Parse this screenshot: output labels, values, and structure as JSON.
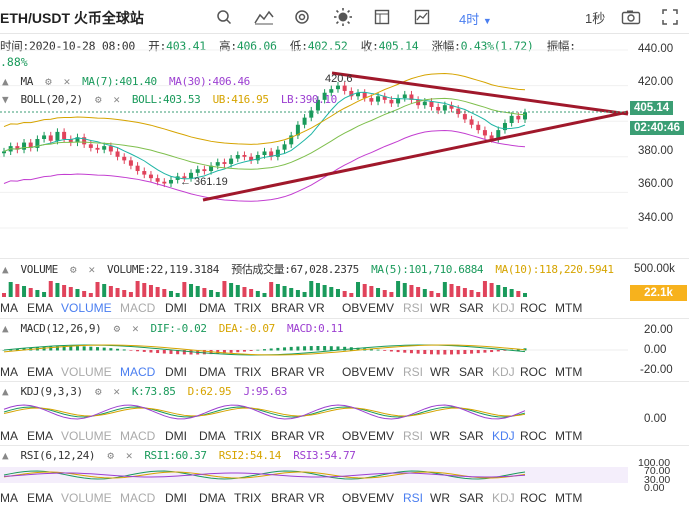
{
  "toolbar": {
    "title": "ETH/USDT 火币全球站",
    "period": "4时",
    "speed": "1秒"
  },
  "info": {
    "time_label": "时间:",
    "time_value": "2020-10-28 08:00",
    "open_label": "开:",
    "open_value": "403.41",
    "high_label": "高:",
    "high_value": "406.06",
    "low_label": "低:",
    "low_value": "402.52",
    "close_label": "收:",
    "close_value": "405.14",
    "change_label": "涨幅:",
    "change_value": "0.43%(1.72)",
    "amp_label": "振幅:",
    "amp_value": ".88%"
  },
  "ma": {
    "name": "MA",
    "ma7": "MA(7):401.40",
    "ma30": "MA(30):406.46"
  },
  "boll": {
    "name": "BOLL(20,2)",
    "boll": "BOLL:403.53",
    "ub": "UB:416.95",
    "lb": "LB:390.10"
  },
  "price_axis": {
    "labels": [
      "440.00",
      "420.00",
      "380.00",
      "360.00",
      "340.00"
    ],
    "current_price": "405.14",
    "countdown": "02:40:46",
    "high_marker": "420.6",
    "low_marker": "← 361.19"
  },
  "volume": {
    "name": "VOLUME",
    "value": "VOLUME:22,119.3184",
    "forecast": "预估成交量:67,028.2375",
    "ma5": "MA(5):101,710.6884",
    "ma10": "MA(10):118,220.5941",
    "axis": "500.00k",
    "tag": "22.1k"
  },
  "macd": {
    "name": "MACD(12,26,9)",
    "dif": "DIF:-0.02",
    "dea": "DEA:-0.07",
    "macd": "MACD:0.11",
    "axis": [
      "20.00",
      "0.00",
      "-20.00"
    ]
  },
  "kdj": {
    "name": "KDJ(9,3,3)",
    "k": "K:73.85",
    "d": "D:62.95",
    "j": "J:95.63",
    "axis": [
      "0.00"
    ]
  },
  "rsi": {
    "name": "RSI(6,12,24)",
    "rsi1": "RSI1:60.37",
    "rsi2": "RSI2:54.14",
    "rsi3": "RSI3:54.77",
    "axis": [
      "100.00",
      "70.00",
      "30.00",
      "0.00"
    ]
  },
  "tabs": [
    "MA",
    "EMA",
    "VOLUME",
    "MACD",
    "DMI",
    "DMA",
    "TRIX",
    "BRAR",
    "VR",
    "OBV",
    "EMV",
    "RSI",
    "WR",
    "SAR",
    "KDJ",
    "ROC",
    "MTM"
  ],
  "colors": {
    "up": "#1a9a5b",
    "down": "#e0435b",
    "trendline": "#a0182b",
    "ma7": "#f0b429",
    "ma30": "#9c3fd1",
    "accent": "#4a7ef0"
  }
}
